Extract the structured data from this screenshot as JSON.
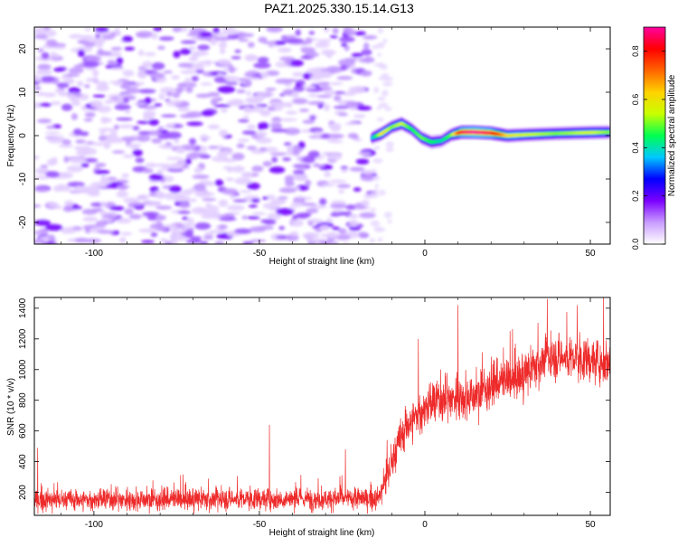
{
  "title": "PAZ1.2025.330.15.14.G13",
  "chart_data": [
    {
      "type": "heatmap",
      "title": "PAZ1.2025.330.15.14.G13",
      "xlabel": "Height of straight line (km)",
      "ylabel": "Frequency (Hz)",
      "xlim": [
        -118,
        56
      ],
      "ylim": [
        -25,
        25
      ],
      "xticks": [
        -100,
        -50,
        0,
        50
      ],
      "yticks": [
        -20,
        -10,
        0,
        10,
        20
      ],
      "colorbar": {
        "label": "Normalized spectral amplitude",
        "range": [
          0,
          0.9
        ],
        "ticks": [
          0.0,
          0.2,
          0.4,
          0.6,
          0.8
        ],
        "colormap": [
          "#ffffff",
          "#c99cff",
          "#7b00ff",
          "#0000ff",
          "#00c8ff",
          "#00ff50",
          "#c8ff00",
          "#ffd200",
          "#ff6400",
          "#ff0000",
          "#ff00a0"
        ]
      },
      "noise_region_x": [
        -118,
        -16
      ],
      "signal_track": {
        "x": [
          -16,
          -13,
          -10,
          -7,
          -4,
          -1,
          2,
          5,
          8,
          11,
          15,
          20,
          25,
          30,
          40,
          50,
          56
        ],
        "freq": [
          -0.5,
          0.5,
          2.0,
          2.8,
          1.5,
          -0.5,
          -1.5,
          -1.2,
          0.2,
          0.8,
          0.8,
          0.6,
          0.0,
          0.2,
          0.5,
          0.7,
          0.8
        ],
        "amplitude": [
          0.35,
          0.6,
          0.5,
          0.55,
          0.45,
          0.5,
          0.45,
          0.4,
          0.5,
          0.85,
          0.9,
          0.85,
          0.6,
          0.55,
          0.5,
          0.55,
          0.5
        ]
      }
    },
    {
      "type": "line",
      "xlabel": "Height of straight line (km)",
      "ylabel": "SNR (10 * v/v)",
      "xlim": [
        -118,
        56
      ],
      "ylim": [
        50,
        1470
      ],
      "xticks": [
        -100,
        -50,
        0,
        50
      ],
      "yticks": [
        200,
        400,
        600,
        800,
        1000,
        1200,
        1400
      ],
      "color": "#ee2a2a",
      "trend": {
        "x": [
          -118,
          -60,
          -14,
          -9,
          -6,
          0,
          5,
          10,
          15,
          20,
          30,
          35,
          40,
          50,
          56
        ],
        "y": [
          150,
          155,
          160,
          450,
          620,
          750,
          800,
          820,
          830,
          900,
          960,
          1050,
          1080,
          1060,
          1050
        ]
      },
      "peaks": [
        {
          "x": -117,
          "y": 490
        },
        {
          "x": -47,
          "y": 640
        },
        {
          "x": -24,
          "y": 480
        },
        {
          "x": 10,
          "y": 1420
        },
        {
          "x": -2,
          "y": 1200
        },
        {
          "x": 37,
          "y": 1460
        },
        {
          "x": 54,
          "y": 1470
        },
        {
          "x": 46,
          "y": 1420
        }
      ]
    }
  ]
}
